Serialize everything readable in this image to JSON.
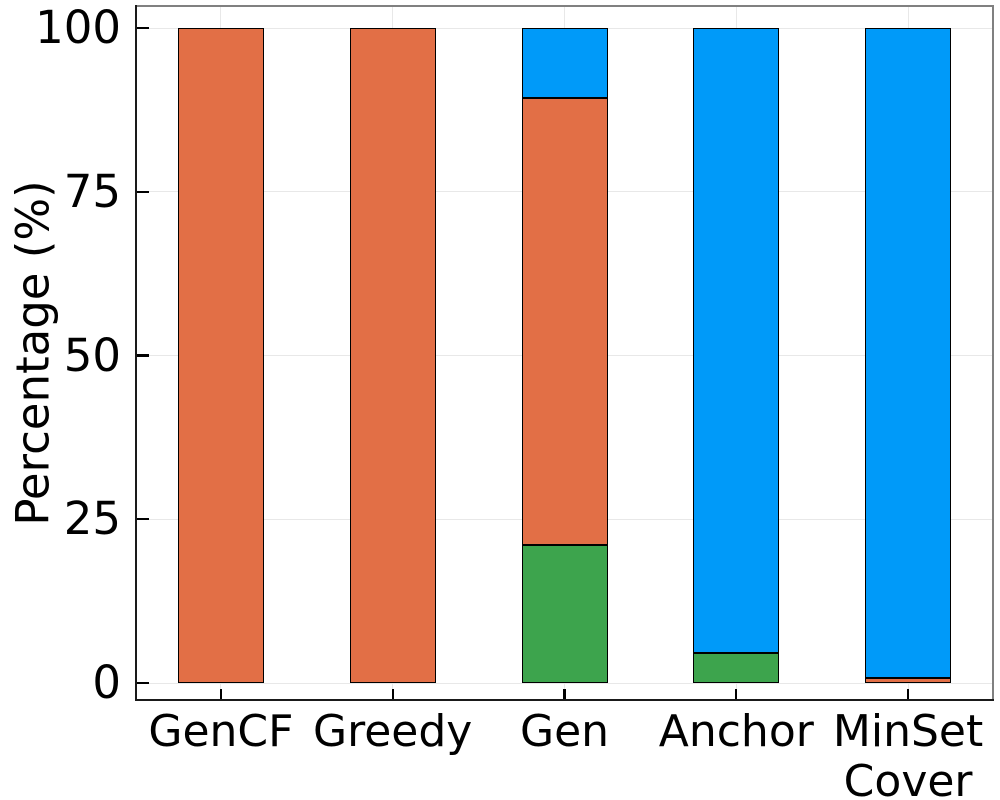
{
  "figure": {
    "background": "#ffffff",
    "text_color": "#000000"
  },
  "colors": {
    "grid": "#e8e8e8",
    "axis_dark": "#1a1a1a",
    "axis_light": "#808080",
    "bar_outline": "#000000",
    "series_green": "#3da44d",
    "series_orange": "#e26f46",
    "series_blue": "#009af9"
  },
  "chart_data": {
    "type": "bar",
    "stacked": true,
    "orientation": "vertical",
    "title": "",
    "xlabel": "",
    "ylabel": "Percentage (%)",
    "categories": [
      "GenCF",
      "Greedy",
      "Gen",
      "Anchor",
      "MinSet Cover"
    ],
    "series": [
      {
        "name": "green",
        "color": "#3da44d",
        "values": [
          0,
          0,
          21.1,
          4.6,
          0
        ]
      },
      {
        "name": "orange",
        "color": "#e26f46",
        "values": [
          100,
          100,
          68.2,
          0,
          0.8
        ]
      },
      {
        "name": "blue",
        "color": "#009af9",
        "values": [
          0,
          0,
          10.7,
          95.4,
          99.2
        ]
      }
    ],
    "ylim": [
      0,
      100
    ],
    "yticks": [
      0,
      25,
      50,
      75,
      100
    ],
    "ytick_labels": [
      "0",
      "25",
      "50",
      "75",
      "100"
    ],
    "grid": true,
    "legend": "none"
  }
}
